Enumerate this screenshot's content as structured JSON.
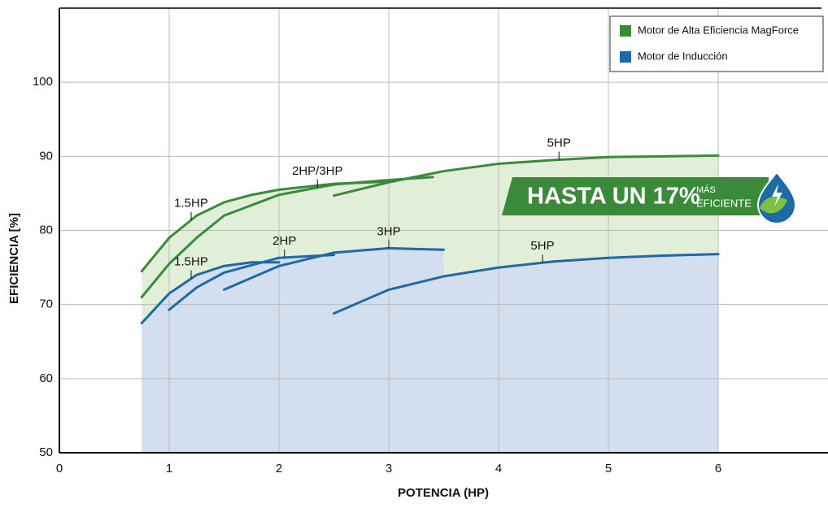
{
  "chart_data": {
    "type": "line",
    "x_label": "POTENCIA (HP)",
    "y_label": "EFICIENCIA [%]",
    "xlim": [
      0,
      7
    ],
    "ylim": [
      50,
      110
    ],
    "xticks": [
      0,
      1,
      2,
      3,
      4,
      5,
      6
    ],
    "yticks": [
      50,
      60,
      70,
      80,
      90,
      100
    ],
    "grid": true,
    "legend_position": "upper right",
    "legend": [
      {
        "name": "Motor de Alta Eficiencia MagForce",
        "color": "#3a8a3a"
      },
      {
        "name": "Motor de Inducción",
        "color": "#1f6aa5"
      }
    ],
    "series": [
      {
        "name": "1.5HP",
        "group": 0,
        "color": "#3a8a3a",
        "x": [
          0.75,
          1,
          1.25,
          1.5,
          1.75,
          2,
          2.5,
          3
        ],
        "values": [
          74.5,
          79,
          82,
          83.8,
          84.8,
          85.5,
          86.3,
          86.6
        ]
      },
      {
        "name": "2HP/3HP",
        "group": 0,
        "color": "#3a8a3a",
        "x": [
          0.75,
          1,
          1.25,
          1.5,
          2,
          2.5,
          3,
          3.4
        ],
        "values": [
          71,
          75.5,
          79,
          82,
          84.8,
          86.2,
          86.8,
          87.2
        ]
      },
      {
        "name": "5HP",
        "group": 0,
        "color": "#3a8a3a",
        "x": [
          2.5,
          3,
          3.5,
          4,
          4.5,
          5,
          5.5,
          6
        ],
        "values": [
          84.7,
          86.5,
          88,
          89,
          89.5,
          89.9,
          90,
          90.1
        ]
      },
      {
        "name": "1.5HP",
        "group": 1,
        "color": "#1f6aa5",
        "x": [
          0.75,
          1,
          1.25,
          1.5,
          1.75,
          2
        ],
        "values": [
          67.5,
          71.5,
          74,
          75.2,
          75.7,
          75.7
        ]
      },
      {
        "name": "2HP",
        "group": 1,
        "color": "#1f6aa5",
        "x": [
          1,
          1.25,
          1.5,
          2,
          2.5
        ],
        "values": [
          69.3,
          72.3,
          74.3,
          76.3,
          76.7
        ]
      },
      {
        "name": "3HP",
        "group": 1,
        "color": "#1f6aa5",
        "x": [
          1.5,
          2,
          2.5,
          3,
          3.5
        ],
        "values": [
          72,
          75.2,
          77,
          77.6,
          77.4
        ]
      },
      {
        "name": "5HP",
        "group": 1,
        "color": "#1f6aa5",
        "x": [
          2.5,
          3,
          3.5,
          4,
          4.5,
          5,
          5.5,
          6
        ],
        "values": [
          68.8,
          72,
          73.8,
          75,
          75.8,
          76.3,
          76.6,
          76.8
        ]
      }
    ],
    "banner": {
      "text": "HASTA UN 17%",
      "sub": [
        "MÁS",
        "EFICIENTE"
      ]
    }
  }
}
